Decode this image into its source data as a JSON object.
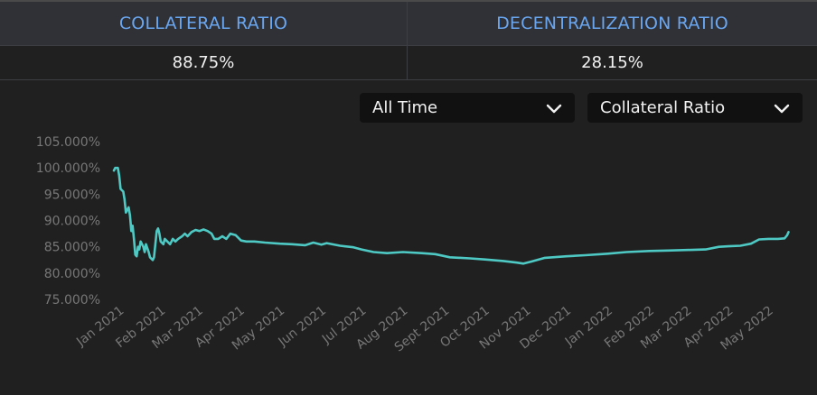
{
  "header": {
    "collateral_label": "COLLATERAL RATIO",
    "decentralization_label": "DECENTRALIZATION RATIO",
    "collateral_value": "88.75%",
    "decentralization_value": "28.15%"
  },
  "controls": {
    "range_selected": "All Time",
    "metric_selected": "Collateral Ratio"
  },
  "colors": {
    "header_label": "#6aa6f0",
    "line": "#4ec9c4",
    "background": "#202020"
  },
  "chart_data": {
    "type": "line",
    "title": "",
    "xlabel": "",
    "ylabel": "",
    "ylim": [
      75,
      105
    ],
    "xlim": [
      "2020-12-28",
      "2022-05-17"
    ],
    "yticks": [
      75,
      80,
      85,
      90,
      95,
      100,
      105
    ],
    "ytick_labels": [
      "75.000%",
      "80.000%",
      "85.000%",
      "90.000%",
      "95.000%",
      "100.000%",
      "105.000%"
    ],
    "xticks": [
      {
        "date": "2021-01-01",
        "label": "Jan 2021"
      },
      {
        "date": "2021-02-01",
        "label": "Feb 2021"
      },
      {
        "date": "2021-03-01",
        "label": "Mar 2021"
      },
      {
        "date": "2021-04-01",
        "label": "Apr 2021"
      },
      {
        "date": "2021-05-01",
        "label": "May 2021"
      },
      {
        "date": "2021-06-01",
        "label": "Jun 2021"
      },
      {
        "date": "2021-07-01",
        "label": "Jul 2021"
      },
      {
        "date": "2021-08-01",
        "label": "Aug 2021"
      },
      {
        "date": "2021-09-01",
        "label": "Sept 2021"
      },
      {
        "date": "2021-10-01",
        "label": "Oct 2021"
      },
      {
        "date": "2021-11-01",
        "label": "Nov 2021"
      },
      {
        "date": "2021-12-01",
        "label": "Dec 2021"
      },
      {
        "date": "2022-01-01",
        "label": "Jan 2022"
      },
      {
        "date": "2022-02-01",
        "label": "Feb 2022"
      },
      {
        "date": "2022-03-01",
        "label": "Mar 2022"
      },
      {
        "date": "2022-04-01",
        "label": "Apr 2022"
      },
      {
        "date": "2022-05-01",
        "label": "May 2022"
      }
    ],
    "grid": false,
    "legend": "none",
    "series": [
      {
        "points": [
          [
            "2020-12-28",
            99.5
          ],
          [
            "2020-12-29",
            100.0
          ],
          [
            "2020-12-31",
            100.0
          ],
          [
            "2021-01-01",
            98.5
          ],
          [
            "2021-01-02",
            96.0
          ],
          [
            "2021-01-04",
            95.5
          ],
          [
            "2021-01-05",
            94.0
          ],
          [
            "2021-01-06",
            91.5
          ],
          [
            "2021-01-08",
            92.5
          ],
          [
            "2021-01-09",
            91.0
          ],
          [
            "2021-01-10",
            88.0
          ],
          [
            "2021-01-11",
            89.0
          ],
          [
            "2021-01-12",
            86.5
          ],
          [
            "2021-01-13",
            83.5
          ],
          [
            "2021-01-14",
            83.2
          ],
          [
            "2021-01-15",
            85.0
          ],
          [
            "2021-01-16",
            84.5
          ],
          [
            "2021-01-17",
            86.0
          ],
          [
            "2021-01-19",
            85.0
          ],
          [
            "2021-01-20",
            84.0
          ],
          [
            "2021-01-21",
            85.5
          ],
          [
            "2021-01-23",
            84.0
          ],
          [
            "2021-01-24",
            83.0
          ],
          [
            "2021-01-26",
            82.5
          ],
          [
            "2021-01-27",
            83.0
          ],
          [
            "2021-01-28",
            85.5
          ],
          [
            "2021-01-29",
            88.0
          ],
          [
            "2021-01-30",
            88.5
          ],
          [
            "2021-01-31",
            87.5
          ],
          [
            "2021-02-01",
            86.0
          ],
          [
            "2021-02-03",
            85.5
          ],
          [
            "2021-02-04",
            86.5
          ],
          [
            "2021-02-06",
            86.0
          ],
          [
            "2021-02-08",
            85.5
          ],
          [
            "2021-02-10",
            86.5
          ],
          [
            "2021-02-12",
            86.0
          ],
          [
            "2021-02-14",
            86.5
          ],
          [
            "2021-02-17",
            87.0
          ],
          [
            "2021-02-19",
            87.5
          ],
          [
            "2021-02-21",
            87.0
          ],
          [
            "2021-02-24",
            87.8
          ],
          [
            "2021-02-27",
            88.2
          ],
          [
            "2021-03-02",
            88.0
          ],
          [
            "2021-03-05",
            88.3
          ],
          [
            "2021-03-08",
            88.0
          ],
          [
            "2021-03-11",
            87.5
          ],
          [
            "2021-03-13",
            86.5
          ],
          [
            "2021-03-16",
            86.5
          ],
          [
            "2021-03-19",
            87.0
          ],
          [
            "2021-03-22",
            86.5
          ],
          [
            "2021-03-25",
            87.5
          ],
          [
            "2021-03-29",
            87.2
          ],
          [
            "2021-04-02",
            86.2
          ],
          [
            "2021-04-06",
            86.0
          ],
          [
            "2021-04-12",
            86.0
          ],
          [
            "2021-04-20",
            85.8
          ],
          [
            "2021-05-01",
            85.6
          ],
          [
            "2021-05-10",
            85.5
          ],
          [
            "2021-05-20",
            85.3
          ],
          [
            "2021-05-26",
            85.8
          ],
          [
            "2021-06-01",
            85.4
          ],
          [
            "2021-06-05",
            85.7
          ],
          [
            "2021-06-15",
            85.2
          ],
          [
            "2021-06-25",
            84.9
          ],
          [
            "2021-07-01",
            84.5
          ],
          [
            "2021-07-10",
            84.0
          ],
          [
            "2021-07-20",
            83.8
          ],
          [
            "2021-08-01",
            84.0
          ],
          [
            "2021-08-15",
            83.8
          ],
          [
            "2021-08-25",
            83.6
          ],
          [
            "2021-09-05",
            83.0
          ],
          [
            "2021-09-20",
            82.8
          ],
          [
            "2021-10-01",
            82.6
          ],
          [
            "2021-10-15",
            82.3
          ],
          [
            "2021-10-25",
            82.0
          ],
          [
            "2021-10-30",
            81.8
          ],
          [
            "2021-11-05",
            82.2
          ],
          [
            "2021-11-15",
            82.9
          ],
          [
            "2021-12-01",
            83.2
          ],
          [
            "2021-12-15",
            83.4
          ],
          [
            "2022-01-01",
            83.7
          ],
          [
            "2022-01-15",
            84.0
          ],
          [
            "2022-02-01",
            84.2
          ],
          [
            "2022-02-15",
            84.3
          ],
          [
            "2022-03-01",
            84.4
          ],
          [
            "2022-03-15",
            84.5
          ],
          [
            "2022-03-25",
            85.0
          ],
          [
            "2022-04-01",
            85.1
          ],
          [
            "2022-04-10",
            85.2
          ],
          [
            "2022-04-18",
            85.6
          ],
          [
            "2022-04-24",
            86.4
          ],
          [
            "2022-05-01",
            86.5
          ],
          [
            "2022-05-08",
            86.5
          ],
          [
            "2022-05-13",
            86.6
          ],
          [
            "2022-05-15",
            87.2
          ],
          [
            "2022-05-16",
            87.8
          ]
        ]
      }
    ]
  }
}
